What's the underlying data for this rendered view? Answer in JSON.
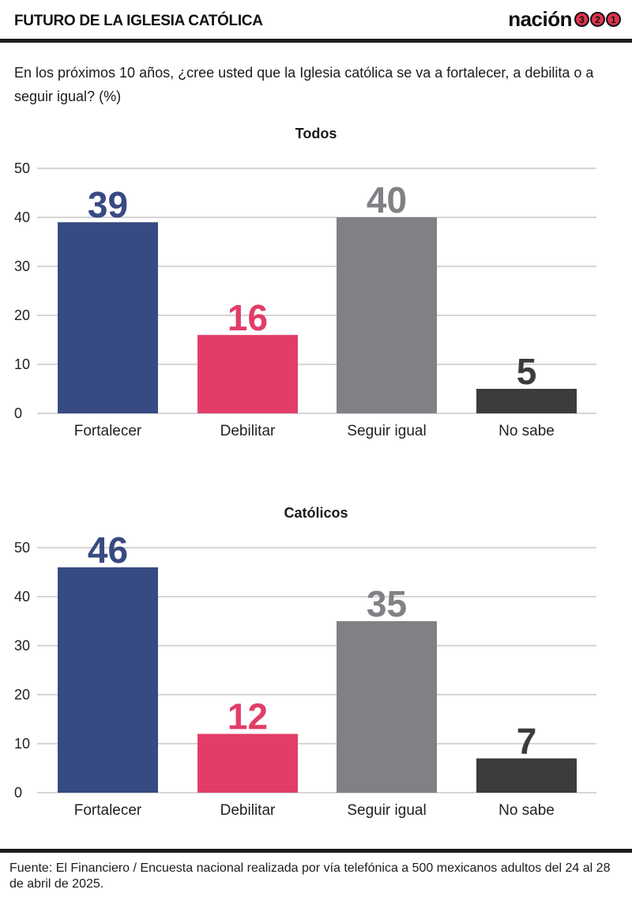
{
  "header": {
    "title": "FUTURO DE LA IGLESIA CATÓLICA",
    "brand_word": "nación",
    "brand_digits": [
      "3",
      "2",
      "1"
    ]
  },
  "question": "En los próximos 10 años, ¿cree usted que la Iglesia católica se va a fortalecer, a debilita o a seguir igual? (%)",
  "colors": {
    "Fortalecer": "#384a82",
    "Debilitar": "#e23d67",
    "Seguir igual": "#808085",
    "No sabe": "#3c3c3e",
    "gridline": "#bdbdbd"
  },
  "chart_data": [
    {
      "type": "bar",
      "title": "Todos",
      "categories": [
        "Fortalecer",
        "Debilitar",
        "Seguir igual",
        "No sabe"
      ],
      "values": [
        39,
        16,
        40,
        5
      ],
      "ylim": [
        0,
        50
      ],
      "yticks": [
        0,
        10,
        20,
        30,
        40,
        50
      ],
      "grid": true
    },
    {
      "type": "bar",
      "title": "Católicos",
      "categories": [
        "Fortalecer",
        "Debilitar",
        "Seguir igual",
        "No sabe"
      ],
      "values": [
        46,
        12,
        35,
        7
      ],
      "ylim": [
        0,
        50
      ],
      "yticks": [
        0,
        10,
        20,
        30,
        40,
        50
      ],
      "grid": true
    }
  ],
  "source": "Fuente: El Financiero / Encuesta nacional realizada por vía telefónica a 500 mexicanos adultos del 24 al 28 de abril de 2025."
}
